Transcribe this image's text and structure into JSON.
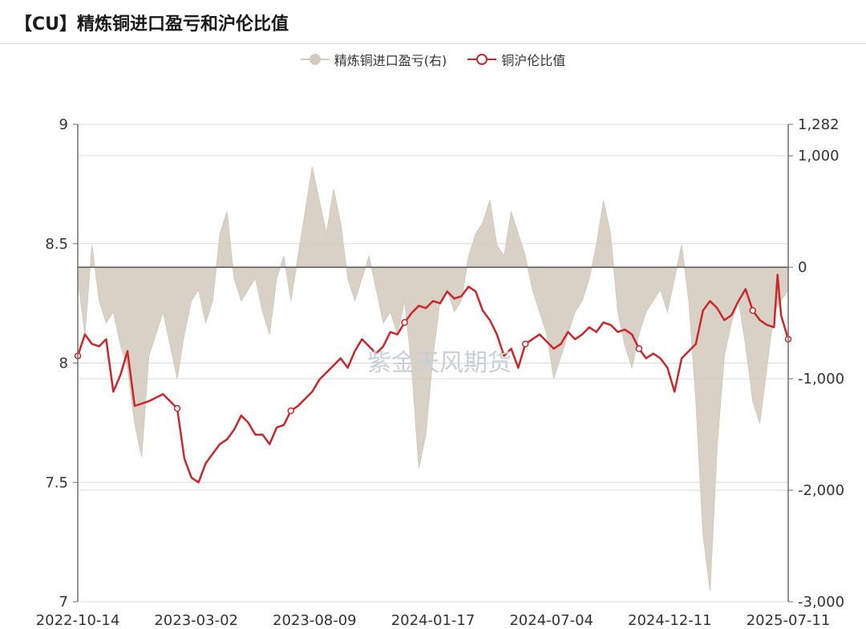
{
  "title": "【CU】精炼铜进口盈亏和沪伦比值",
  "watermark": "紫金天风期货",
  "legend": {
    "area_label": "精炼铜进口盈亏(右)",
    "line_label": "铜沪伦比值"
  },
  "colors": {
    "area": "#d3c9bc",
    "line": "#c8282d",
    "axis": "#6e6e6e",
    "grid": "#dcdcdc"
  },
  "chart_data": {
    "type": "line",
    "x_labels": [
      "2022-10-14",
      "2023-03-02",
      "2023-08-09",
      "2024-01-17",
      "2024-07-04",
      "2024-12-11",
      "2025-07-11"
    ],
    "y_left": {
      "min": 7,
      "max": 9,
      "ticks": [
        "9",
        "8.5",
        "8",
        "7.5",
        "7"
      ]
    },
    "y_right": {
      "min": -3000,
      "max": 1282,
      "ticks": [
        "1,282",
        "1,000",
        "0",
        "-1,000",
        "-2,000",
        "-3,000"
      ]
    },
    "series": [
      {
        "name": "精炼铜进口盈亏(右)",
        "type": "area",
        "axis": "right",
        "points": [
          [
            0,
            -100
          ],
          [
            0.01,
            -600
          ],
          [
            0.02,
            200
          ],
          [
            0.03,
            -300
          ],
          [
            0.04,
            -500
          ],
          [
            0.05,
            -400
          ],
          [
            0.06,
            -700
          ],
          [
            0.07,
            -900
          ],
          [
            0.08,
            -1400
          ],
          [
            0.09,
            -1700
          ],
          [
            0.1,
            -800
          ],
          [
            0.12,
            -400
          ],
          [
            0.14,
            -1000
          ],
          [
            0.15,
            -600
          ],
          [
            0.16,
            -300
          ],
          [
            0.17,
            -200
          ],
          [
            0.18,
            -500
          ],
          [
            0.19,
            -300
          ],
          [
            0.2,
            300
          ],
          [
            0.21,
            500
          ],
          [
            0.22,
            -100
          ],
          [
            0.23,
            -300
          ],
          [
            0.24,
            -200
          ],
          [
            0.25,
            -100
          ],
          [
            0.26,
            -400
          ],
          [
            0.27,
            -600
          ],
          [
            0.28,
            -100
          ],
          [
            0.29,
            100
          ],
          [
            0.3,
            -300
          ],
          [
            0.31,
            100
          ],
          [
            0.32,
            500
          ],
          [
            0.33,
            900
          ],
          [
            0.34,
            600
          ],
          [
            0.35,
            300
          ],
          [
            0.36,
            700
          ],
          [
            0.37,
            400
          ],
          [
            0.38,
            -100
          ],
          [
            0.39,
            -300
          ],
          [
            0.4,
            -100
          ],
          [
            0.41,
            100
          ],
          [
            0.42,
            -200
          ],
          [
            0.43,
            -500
          ],
          [
            0.44,
            -400
          ],
          [
            0.45,
            -600
          ],
          [
            0.46,
            -300
          ],
          [
            0.47,
            -900
          ],
          [
            0.48,
            -1800
          ],
          [
            0.49,
            -1500
          ],
          [
            0.5,
            -800
          ],
          [
            0.51,
            -300
          ],
          [
            0.52,
            -200
          ],
          [
            0.53,
            -400
          ],
          [
            0.54,
            -300
          ],
          [
            0.55,
            100
          ],
          [
            0.56,
            300
          ],
          [
            0.57,
            400
          ],
          [
            0.58,
            600
          ],
          [
            0.59,
            200
          ],
          [
            0.6,
            100
          ],
          [
            0.61,
            500
          ],
          [
            0.62,
            300
          ],
          [
            0.63,
            100
          ],
          [
            0.64,
            -200
          ],
          [
            0.65,
            -400
          ],
          [
            0.66,
            -600
          ],
          [
            0.67,
            -1000
          ],
          [
            0.68,
            -800
          ],
          [
            0.69,
            -600
          ],
          [
            0.7,
            -400
          ],
          [
            0.71,
            -300
          ],
          [
            0.72,
            -100
          ],
          [
            0.73,
            200
          ],
          [
            0.74,
            600
          ],
          [
            0.75,
            300
          ],
          [
            0.76,
            -400
          ],
          [
            0.77,
            -700
          ],
          [
            0.78,
            -900
          ],
          [
            0.79,
            -600
          ],
          [
            0.8,
            -400
          ],
          [
            0.81,
            -300
          ],
          [
            0.82,
            -200
          ],
          [
            0.83,
            -400
          ],
          [
            0.84,
            -100
          ],
          [
            0.85,
            200
          ],
          [
            0.86,
            -300
          ],
          [
            0.87,
            -1200
          ],
          [
            0.88,
            -2400
          ],
          [
            0.89,
            -2900
          ],
          [
            0.9,
            -1600
          ],
          [
            0.91,
            -800
          ],
          [
            0.92,
            -500
          ],
          [
            0.93,
            -300
          ],
          [
            0.94,
            -700
          ],
          [
            0.95,
            -1200
          ],
          [
            0.96,
            -1400
          ],
          [
            0.97,
            -900
          ],
          [
            0.98,
            -400
          ],
          [
            0.99,
            -300
          ],
          [
            1,
            -200
          ]
        ]
      },
      {
        "name": "铜沪伦比值",
        "type": "line",
        "axis": "left",
        "points": [
          [
            0,
            8.03
          ],
          [
            0.01,
            8.12
          ],
          [
            0.02,
            8.08
          ],
          [
            0.03,
            8.07
          ],
          [
            0.04,
            8.1
          ],
          [
            0.05,
            7.88
          ],
          [
            0.06,
            7.95
          ],
          [
            0.07,
            8.05
          ],
          [
            0.08,
            7.82
          ],
          [
            0.1,
            7.84
          ],
          [
            0.12,
            7.87
          ],
          [
            0.13,
            7.84
          ],
          [
            0.14,
            7.81
          ],
          [
            0.15,
            7.6
          ],
          [
            0.16,
            7.52
          ],
          [
            0.17,
            7.5
          ],
          [
            0.18,
            7.58
          ],
          [
            0.19,
            7.62
          ],
          [
            0.2,
            7.66
          ],
          [
            0.21,
            7.68
          ],
          [
            0.22,
            7.72
          ],
          [
            0.23,
            7.78
          ],
          [
            0.24,
            7.75
          ],
          [
            0.25,
            7.7
          ],
          [
            0.26,
            7.7
          ],
          [
            0.27,
            7.66
          ],
          [
            0.28,
            7.73
          ],
          [
            0.29,
            7.74
          ],
          [
            0.3,
            7.8
          ],
          [
            0.31,
            7.82
          ],
          [
            0.32,
            7.85
          ],
          [
            0.33,
            7.88
          ],
          [
            0.34,
            7.93
          ],
          [
            0.35,
            7.96
          ],
          [
            0.36,
            7.99
          ],
          [
            0.37,
            8.02
          ],
          [
            0.38,
            7.98
          ],
          [
            0.39,
            8.05
          ],
          [
            0.4,
            8.1
          ],
          [
            0.41,
            8.07
          ],
          [
            0.42,
            8.04
          ],
          [
            0.43,
            8.07
          ],
          [
            0.44,
            8.13
          ],
          [
            0.45,
            8.12
          ],
          [
            0.46,
            8.17
          ],
          [
            0.47,
            8.21
          ],
          [
            0.48,
            8.24
          ],
          [
            0.49,
            8.23
          ],
          [
            0.5,
            8.26
          ],
          [
            0.51,
            8.25
          ],
          [
            0.52,
            8.3
          ],
          [
            0.53,
            8.27
          ],
          [
            0.54,
            8.28
          ],
          [
            0.55,
            8.32
          ],
          [
            0.56,
            8.3
          ],
          [
            0.57,
            8.22
          ],
          [
            0.58,
            8.18
          ],
          [
            0.59,
            8.12
          ],
          [
            0.6,
            8.03
          ],
          [
            0.61,
            8.06
          ],
          [
            0.62,
            7.98
          ],
          [
            0.63,
            8.08
          ],
          [
            0.64,
            8.1
          ],
          [
            0.65,
            8.12
          ],
          [
            0.66,
            8.09
          ],
          [
            0.67,
            8.06
          ],
          [
            0.68,
            8.08
          ],
          [
            0.69,
            8.13
          ],
          [
            0.7,
            8.1
          ],
          [
            0.71,
            8.12
          ],
          [
            0.72,
            8.15
          ],
          [
            0.73,
            8.13
          ],
          [
            0.74,
            8.17
          ],
          [
            0.75,
            8.16
          ],
          [
            0.76,
            8.13
          ],
          [
            0.77,
            8.14
          ],
          [
            0.78,
            8.12
          ],
          [
            0.79,
            8.06
          ],
          [
            0.8,
            8.02
          ],
          [
            0.81,
            8.04
          ],
          [
            0.82,
            8.02
          ],
          [
            0.83,
            7.98
          ],
          [
            0.84,
            7.88
          ],
          [
            0.85,
            8.02
          ],
          [
            0.86,
            8.05
          ],
          [
            0.87,
            8.08
          ],
          [
            0.88,
            8.22
          ],
          [
            0.89,
            8.26
          ],
          [
            0.9,
            8.23
          ],
          [
            0.91,
            8.18
          ],
          [
            0.92,
            8.2
          ],
          [
            0.93,
            8.26
          ],
          [
            0.94,
            8.31
          ],
          [
            0.95,
            8.22
          ],
          [
            0.96,
            8.18
          ],
          [
            0.97,
            8.16
          ],
          [
            0.98,
            8.15
          ],
          [
            0.985,
            8.37
          ],
          [
            0.99,
            8.2
          ],
          [
            1,
            8.1
          ]
        ]
      }
    ]
  }
}
